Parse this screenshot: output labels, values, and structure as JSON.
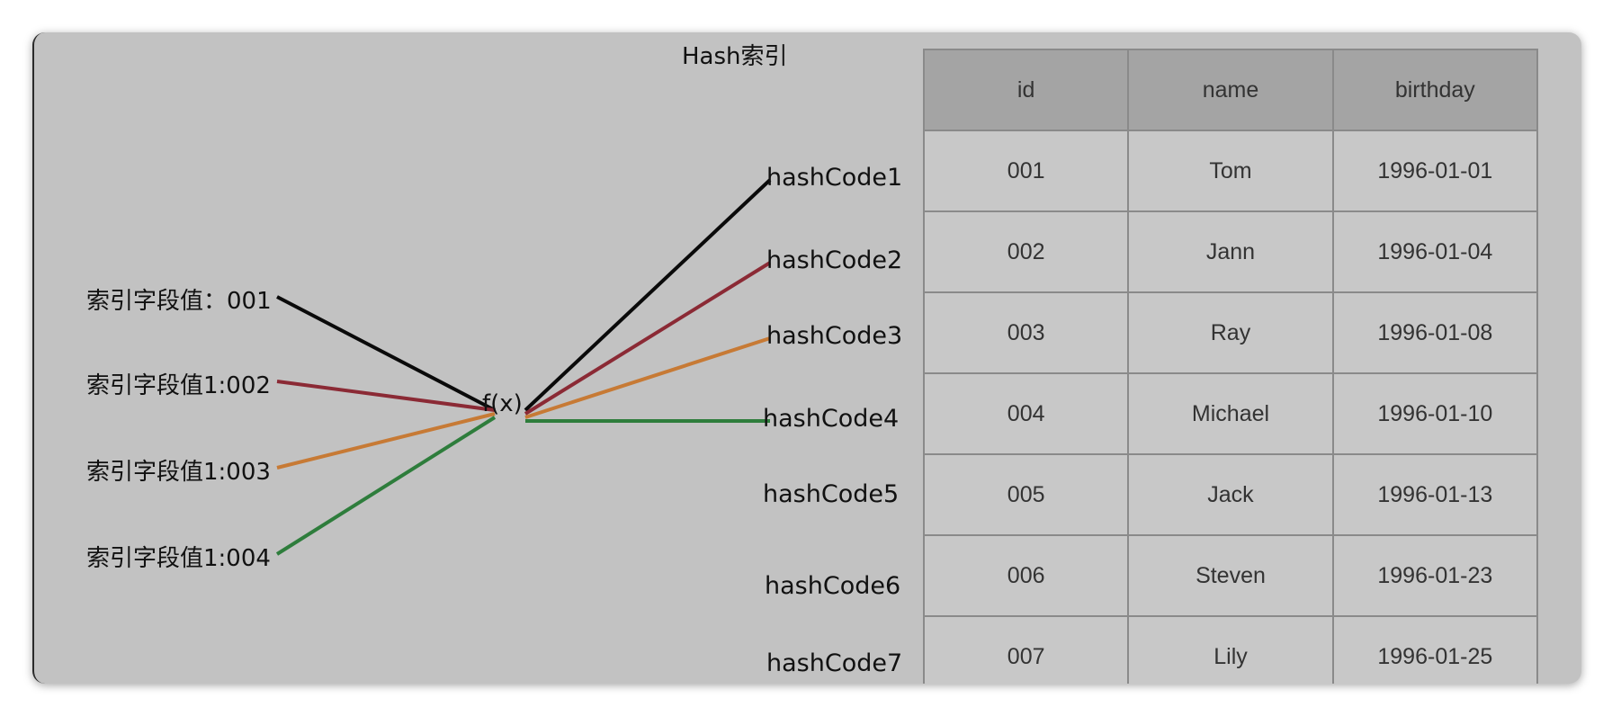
{
  "title": "Hash索引",
  "function_label": "f(x)",
  "index_values": [
    "索引字段值：001",
    "索引字段值1:002",
    "索引字段值1:003",
    "索引字段值1:004"
  ],
  "hash_codes": [
    "hashCode1",
    "hashCode2",
    "hashCode3",
    "hashCode4",
    "hashCode5",
    "hashCode6",
    "hashCode7"
  ],
  "line_colors": [
    "#0a0a0a",
    "#8b2a35",
    "#c77a35",
    "#2e7d3c"
  ],
  "table": {
    "headers": [
      "id",
      "name",
      "birthday"
    ],
    "rows": [
      [
        "001",
        "Tom",
        "1996-01-01"
      ],
      [
        "002",
        "Jann",
        "1996-01-04"
      ],
      [
        "003",
        "Ray",
        "1996-01-08"
      ],
      [
        "004",
        "Michael",
        "1996-01-10"
      ],
      [
        "005",
        "Jack",
        "1996-01-13"
      ],
      [
        "006",
        "Steven",
        "1996-01-23"
      ],
      [
        "007",
        "Lily",
        "1996-01-25"
      ]
    ]
  }
}
